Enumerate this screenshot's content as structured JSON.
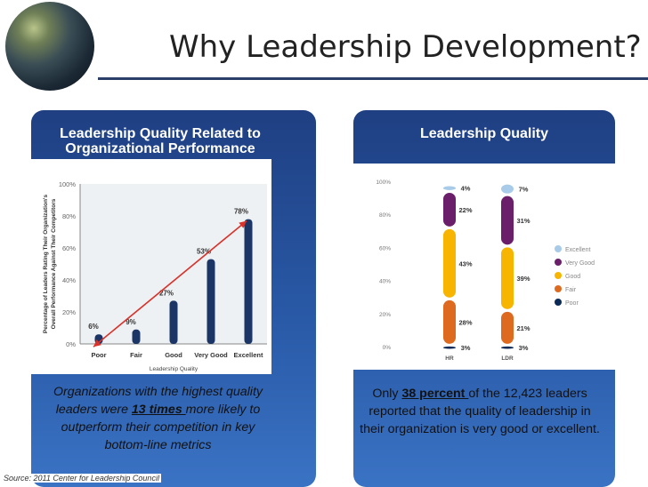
{
  "slide_title": "Why Leadership Development?",
  "left": {
    "panel_title_line1": "Leadership Quality Related to",
    "panel_title_line2": "Organizational Performance",
    "caption_pre": "Organizations with the highest quality leaders were ",
    "caption_emph": "13 times ",
    "caption_post": "more likely to outperform their competition in key bottom-line metrics"
  },
  "right": {
    "panel_title": "Leadership Quality",
    "caption_pre": "Only ",
    "caption_emph": "38 percent ",
    "caption_post": "of the 12,423 leaders reported that the quality of leadership in their organization is very good or excellent."
  },
  "source": "Source: 2011 Center for Leadership Council",
  "colors": {
    "bar_navy": "#1a3566",
    "arrow_red": "#d8322a",
    "excellent": "#a7cbe8",
    "very_good": "#6b1f6a",
    "good": "#f7b500",
    "fair": "#de6a1f",
    "poor": "#0b2a57"
  },
  "chart_data": [
    {
      "type": "bar",
      "categories": [
        "Poor",
        "Fair",
        "Good",
        "Very Good",
        "Excellent"
      ],
      "values": [
        6,
        9,
        27,
        53,
        78
      ],
      "value_labels": [
        "6%",
        "9%",
        "27%",
        "53%",
        "78%"
      ],
      "xlabel": "Leadership Quality",
      "ylabel_line1": "Percentage of Leaders Rating Their Organization's",
      "ylabel_line2": "Overall Performance Against Their Competitors",
      "yticks": [
        "0%",
        "20%",
        "40%",
        "60%",
        "80%",
        "100%"
      ],
      "ylim": [
        0,
        100
      ],
      "annotation": "trend arrow from Poor to Excellent"
    },
    {
      "type": "bar",
      "stacked": true,
      "categories": [
        "HR",
        "LDR"
      ],
      "yticks": [
        "0%",
        "20%",
        "40%",
        "60%",
        "80%",
        "100%"
      ],
      "ylim": [
        0,
        100
      ],
      "legend_position": "right",
      "series": [
        {
          "name": "Poor",
          "values": [
            3,
            3
          ],
          "labels": [
            "3%",
            "3%"
          ]
        },
        {
          "name": "Fair",
          "values": [
            28,
            21
          ],
          "labels": [
            "28%",
            "21%"
          ]
        },
        {
          "name": "Good",
          "values": [
            43,
            39
          ],
          "labels": [
            "43%",
            "39%"
          ]
        },
        {
          "name": "Very Good",
          "values": [
            22,
            31
          ],
          "labels": [
            "22%",
            "31%"
          ]
        },
        {
          "name": "Excellent",
          "values": [
            4,
            7
          ],
          "labels": [
            "4%",
            "7%"
          ]
        }
      ],
      "legend": [
        "Excellent",
        "Very Good",
        "Good",
        "Fair",
        "Poor"
      ]
    }
  ]
}
